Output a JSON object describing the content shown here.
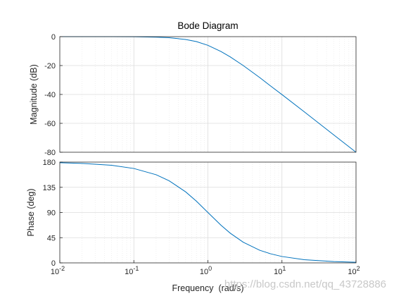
{
  "chart_data": [
    {
      "type": "line",
      "title": "Bode Diagram",
      "ylabel": "Magnitude (dB)",
      "xlabel": "",
      "x_scale": "log",
      "xlim": [
        0.01,
        100
      ],
      "ylim": [
        -80,
        0
      ],
      "yticks": [
        0,
        -20,
        -40,
        -60,
        -80
      ],
      "ytick_labels": [
        "0",
        "-20",
        "-40",
        "-60",
        "-80"
      ],
      "grid": true,
      "line_color": "#0072BD",
      "series": [
        {
          "x": [
            0.01,
            0.02,
            0.05,
            0.1,
            0.2,
            0.3,
            0.5,
            0.7,
            1,
            1.5,
            2,
            3,
            5,
            7,
            10,
            20,
            50,
            100
          ],
          "y": [
            0,
            0,
            -0.02,
            -0.09,
            -0.34,
            -0.75,
            -1.94,
            -3.4,
            -6.0,
            -10.3,
            -13.98,
            -20.0,
            -28.3,
            -34.1,
            -40.1,
            -52.0,
            -68.0,
            -80.0
          ]
        }
      ]
    },
    {
      "type": "line",
      "title": "",
      "ylabel": "Phase (deg)",
      "xlabel": "Frequency  (rad/s)",
      "x_scale": "log",
      "xlim": [
        0.01,
        100
      ],
      "ylim": [
        0,
        180
      ],
      "yticks": [
        180,
        135,
        90,
        45,
        0
      ],
      "ytick_labels": [
        "180",
        "135",
        "90",
        "45",
        "0"
      ],
      "xtick_labels": [
        {
          "base": "10",
          "exp": "-2"
        },
        {
          "base": "10",
          "exp": "-1"
        },
        {
          "base": "10",
          "exp": "0"
        },
        {
          "base": "10",
          "exp": "1"
        },
        {
          "base": "10",
          "exp": "2"
        }
      ],
      "grid": true,
      "line_color": "#0072BD",
      "series": [
        {
          "x": [
            0.01,
            0.02,
            0.05,
            0.1,
            0.2,
            0.3,
            0.5,
            0.7,
            1,
            1.5,
            2,
            3,
            5,
            7,
            10,
            20,
            50,
            100
          ],
          "y": [
            178.9,
            177.7,
            174.3,
            168.6,
            157.4,
            146.6,
            126.9,
            110.1,
            90.0,
            67.4,
            53.1,
            36.9,
            22.6,
            16.3,
            11.4,
            5.7,
            2.3,
            1.1
          ]
        }
      ]
    }
  ],
  "watermark": "https://blog.csdn.net/qq_43728886"
}
